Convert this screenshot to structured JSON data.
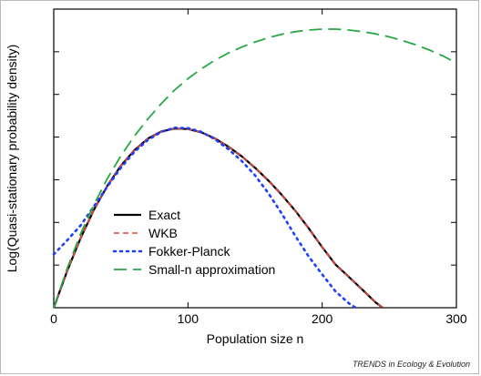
{
  "chart_data": {
    "type": "line",
    "xlabel": "Population size n",
    "ylabel": "Log(Quasi-stationary probability density)",
    "xlim": [
      0,
      300
    ],
    "ylim": [
      0,
      7
    ],
    "x_ticks": [
      "0",
      "100",
      "200",
      "300"
    ],
    "grid": false,
    "legend_position": "lower-left",
    "series": [
      {
        "name": "Exact",
        "color": "#000000",
        "style": "solid",
        "x": [
          0,
          10,
          20,
          30,
          40,
          50,
          60,
          70,
          80,
          90,
          100,
          110,
          120,
          130,
          140,
          150,
          160,
          170,
          180,
          190,
          200,
          210,
          220,
          230,
          240,
          245
        ],
        "y": [
          0.0,
          0.86,
          1.63,
          2.3,
          2.86,
          3.33,
          3.69,
          3.96,
          4.13,
          4.2,
          4.19,
          4.11,
          3.97,
          3.78,
          3.55,
          3.28,
          2.98,
          2.64,
          2.27,
          1.86,
          1.42,
          1.01,
          0.72,
          0.42,
          0.12,
          0.0
        ]
      },
      {
        "name": "WKB",
        "color": "#e8463f",
        "style": "dashed",
        "x": [
          0,
          10,
          20,
          30,
          40,
          50,
          60,
          70,
          80,
          90,
          100,
          110,
          120,
          130,
          140,
          150,
          160,
          170,
          180,
          190,
          200,
          210,
          220,
          230,
          240,
          245
        ],
        "y": [
          0.0,
          0.86,
          1.63,
          2.3,
          2.86,
          3.33,
          3.69,
          3.96,
          4.13,
          4.2,
          4.19,
          4.11,
          3.97,
          3.78,
          3.55,
          3.28,
          2.98,
          2.64,
          2.27,
          1.86,
          1.42,
          1.01,
          0.72,
          0.42,
          0.12,
          0.0
        ]
      },
      {
        "name": "Fokker-Planck",
        "color": "#1f3fff",
        "style": "dotted",
        "x": [
          0,
          10,
          20,
          30,
          40,
          50,
          60,
          70,
          80,
          90,
          100,
          110,
          120,
          130,
          140,
          150,
          160,
          170,
          180,
          190,
          200,
          210,
          220,
          225
        ],
        "y": [
          1.25,
          1.58,
          1.93,
          2.38,
          2.84,
          3.28,
          3.65,
          3.93,
          4.12,
          4.22,
          4.21,
          4.12,
          3.95,
          3.72,
          3.44,
          3.1,
          2.68,
          2.2,
          1.68,
          1.2,
          0.78,
          0.38,
          0.1,
          0.0
        ]
      },
      {
        "name": "Small-n approximation",
        "color": "#27a844",
        "style": "longdash",
        "x": [
          0,
          10,
          20,
          30,
          40,
          50,
          60,
          70,
          80,
          90,
          100,
          110,
          120,
          130,
          140,
          150,
          160,
          170,
          180,
          190,
          200,
          210,
          220,
          230,
          240,
          250,
          260,
          270,
          280,
          290,
          300
        ],
        "y": [
          0.0,
          0.92,
          1.73,
          2.42,
          3.03,
          3.56,
          4.02,
          4.42,
          4.78,
          5.1,
          5.37,
          5.6,
          5.8,
          5.97,
          6.11,
          6.23,
          6.33,
          6.41,
          6.47,
          6.51,
          6.53,
          6.53,
          6.51,
          6.47,
          6.42,
          6.35,
          6.26,
          6.16,
          6.04,
          5.9,
          5.74
        ]
      }
    ]
  },
  "credit": "TRENDS in Ecology & Evolution"
}
